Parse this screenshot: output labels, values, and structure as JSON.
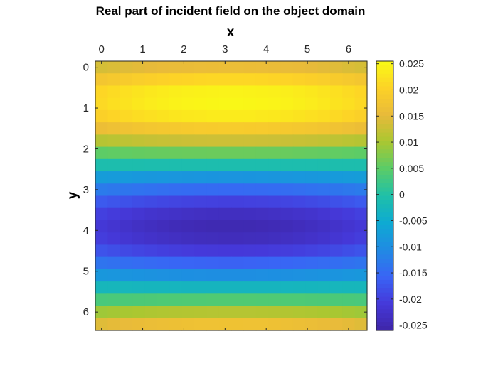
{
  "chart_data": {
    "type": "heatmap",
    "title": "Real part of incident field on the object domain",
    "xlabel": "x",
    "ylabel": "y",
    "x_axis_position": "top",
    "y_axis_direction": "down",
    "xlim": [
      -0.15,
      6.45
    ],
    "ylim": [
      -0.15,
      6.45
    ],
    "xticks": [
      "0",
      "1",
      "2",
      "3",
      "4",
      "5",
      "6"
    ],
    "yticks": [
      "0",
      "1",
      "2",
      "3",
      "4",
      "5",
      "6"
    ],
    "colormap": "parula",
    "clim": [
      -0.026,
      0.0255
    ],
    "colorbar": {
      "position": "right",
      "ticks": [
        "0.025",
        "0.02",
        "0.015",
        "0.01",
        "0.005",
        "0",
        "-0.005",
        "-0.01",
        "-0.015",
        "-0.02",
        "-0.025"
      ],
      "tick_values": [
        0.025,
        0.02,
        0.015,
        0.01,
        0.005,
        0,
        -0.005,
        -0.01,
        -0.015,
        -0.02,
        -0.025
      ]
    },
    "grid": "22 x 22 cells, step 0.3",
    "x_centers": [
      0,
      0.3,
      0.6,
      0.9,
      1.2,
      1.5,
      1.8,
      2.1,
      2.4,
      2.7,
      3.0,
      3.3,
      3.6,
      3.9,
      4.2,
      4.5,
      4.8,
      5.1,
      5.4,
      5.7,
      6.0,
      6.3
    ],
    "y_centers": [
      0,
      0.3,
      0.6,
      0.9,
      1.2,
      1.5,
      1.8,
      2.1,
      2.4,
      2.7,
      3.0,
      3.3,
      3.6,
      3.9,
      4.2,
      4.5,
      4.8,
      5.1,
      5.4,
      5.7,
      6.0,
      6.3
    ],
    "row_profile": [
      0.016,
      0.021,
      0.0245,
      0.025,
      0.0235,
      0.019,
      0.013,
      0.006,
      -0.001,
      -0.009,
      -0.015,
      -0.02,
      -0.0235,
      -0.025,
      -0.024,
      -0.021,
      -0.016,
      -0.01,
      -0.003,
      0.004,
      0.011,
      0.017
    ],
    "edge_attenuation": 0.85
  }
}
